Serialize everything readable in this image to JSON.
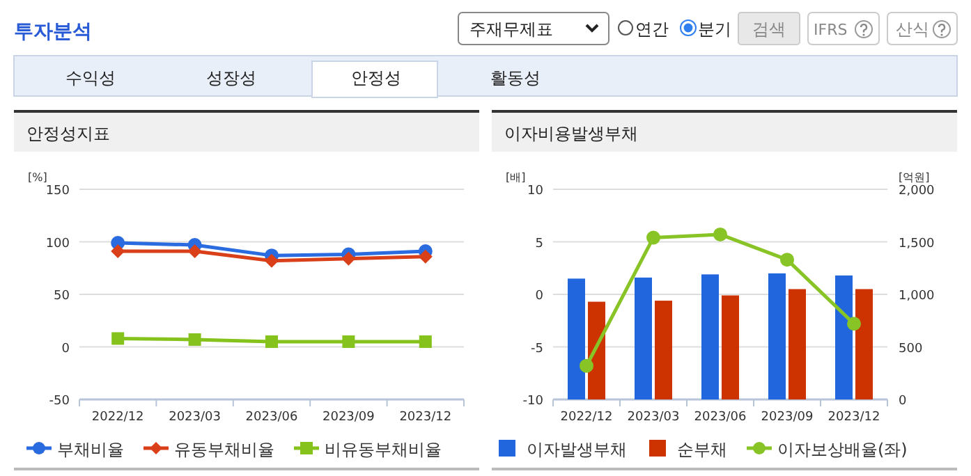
{
  "chart_data": [
    {
      "type": "other",
      "title": "투자분석",
      "annotations": [
        "주재무제표",
        "연간",
        "분기",
        "검색",
        "IFRS",
        "산식",
        "수익성",
        "성장성",
        "안정성",
        "활동성"
      ]
    },
    {
      "type": "line",
      "title": "안정성지표",
      "ylabel": "[%]",
      "categories": [
        "2022/12",
        "2023/03",
        "2023/06",
        "2023/09",
        "2023/12"
      ],
      "ylim": [
        -50,
        150
      ],
      "yticks": [
        -50,
        0,
        50,
        100,
        150
      ],
      "grid": "y",
      "legend": "bottom",
      "series": [
        {
          "name": "부채비율",
          "color": "#2a6be0",
          "marker": "circle",
          "values": [
            99,
            97,
            87,
            88,
            91
          ]
        },
        {
          "name": "유동부채비율",
          "color": "#d9401a",
          "marker": "diamond",
          "values": [
            91,
            91,
            82,
            84,
            86
          ]
        },
        {
          "name": "비유동부채비율",
          "color": "#86c21c",
          "marker": "square",
          "values": [
            8,
            7,
            5,
            5,
            5
          ]
        }
      ]
    },
    {
      "type": "bar",
      "title": "이자비용발생부채",
      "ylabel": "[배]",
      "y2label": "[억원]",
      "categories": [
        "2022/12",
        "2023/03",
        "2023/06",
        "2023/09",
        "2023/12"
      ],
      "ylim": [
        -10,
        10
      ],
      "yticks": [
        -10,
        -5,
        0,
        5,
        10
      ],
      "y2lim": [
        0,
        2000
      ],
      "y2ticks": [
        0,
        500,
        {
          "value": 1000,
          "label": "1,000"
        },
        {
          "value": 1500,
          "label": "1,500"
        },
        {
          "value": 2000,
          "label": "2,000"
        }
      ],
      "grid": "y",
      "legend": "bottom",
      "series": [
        {
          "name": "이자발생부채",
          "color": "#2266dd",
          "axis": "y2",
          "values": [
            1150,
            1160,
            1190,
            1200,
            1180
          ]
        },
        {
          "name": "순부채",
          "color": "#cc3300",
          "axis": "y2",
          "values": [
            930,
            940,
            990,
            1050,
            1050
          ]
        },
        {
          "name": "이자보상배율(좌)",
          "type": "line",
          "color": "#88c425",
          "marker": "circle",
          "values": [
            -6.8,
            5.4,
            5.7,
            3.3,
            -2.8
          ]
        }
      ]
    }
  ]
}
